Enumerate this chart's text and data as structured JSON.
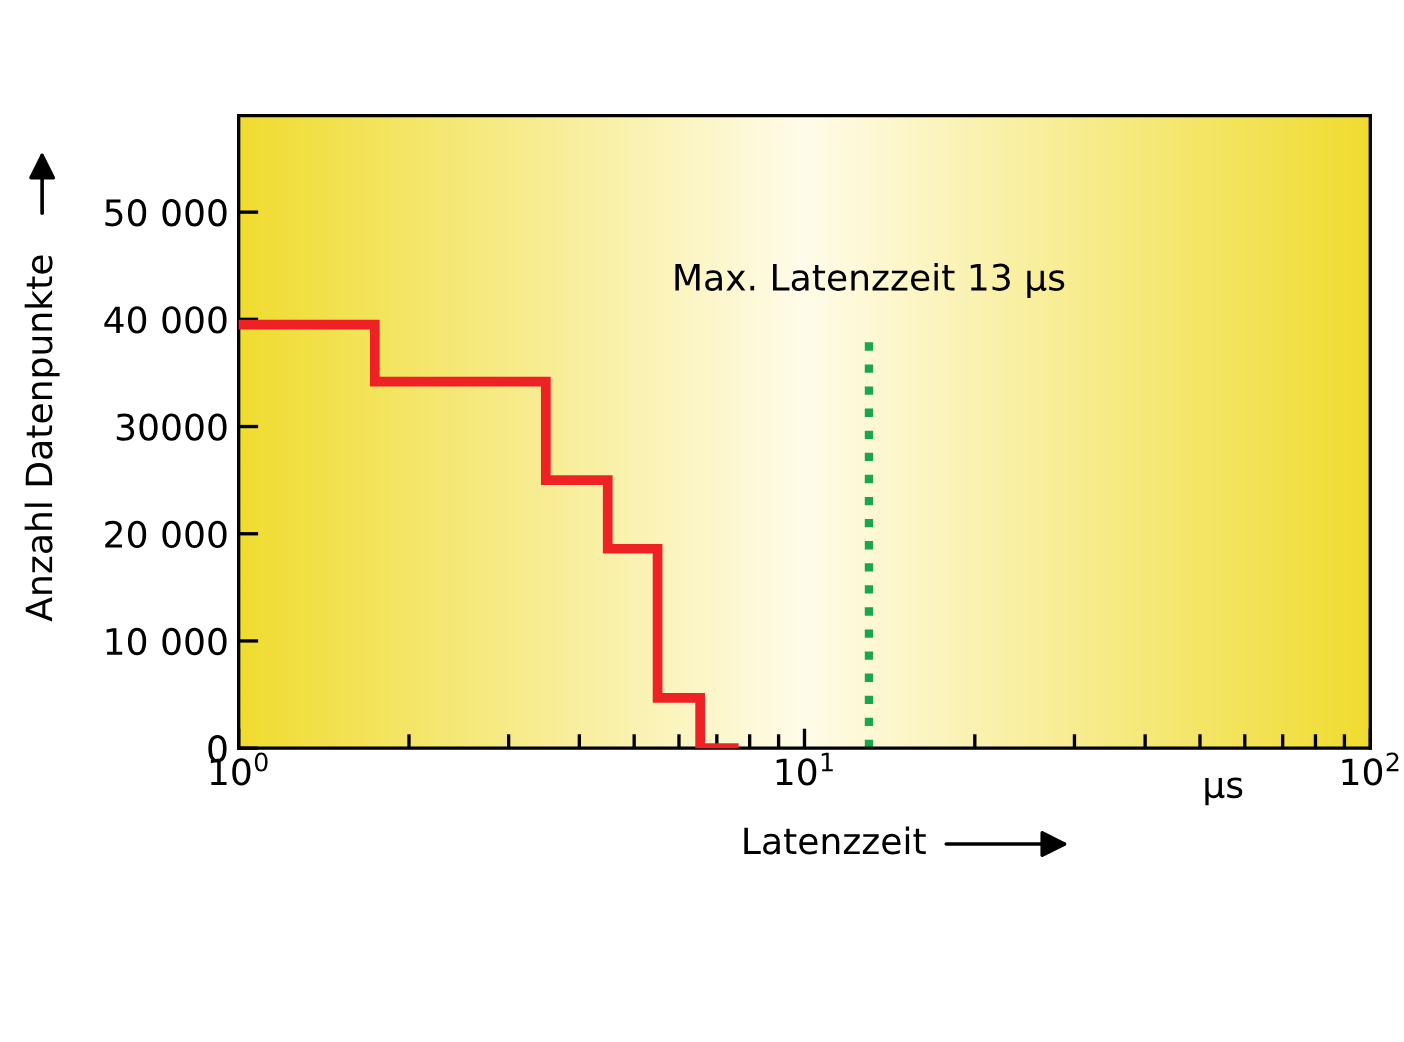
{
  "chart_data": {
    "type": "step",
    "xlabel": "Latenzzeit",
    "ylabel": "Anzahl Datenpunkte",
    "x": [
      1,
      1.74,
      3.49,
      4.49,
      5.5,
      6.54,
      7.5
    ],
    "series": [
      {
        "color": "#ee2224",
        "values": [
          39500,
          34200,
          25000,
          18600,
          4700,
          0,
          0
        ]
      }
    ],
    "log": "x",
    "xlim": [
      1,
      100
    ],
    "xticks": [
      {
        "value": 1,
        "label": "10$^{0}$"
      },
      {
        "value": 10,
        "label": "10$^{1}$"
      },
      {
        "value": 100,
        "label": "10$^{2}$"
      }
    ],
    "ylim": [
      0,
      59000
    ],
    "yticks": [
      {
        "value": 0,
        "label": "0"
      },
      {
        "value": 10000,
        "label": "10 000"
      },
      {
        "value": 20000,
        "label": "20 000"
      },
      {
        "value": 30000,
        "label": "30000"
      },
      {
        "value": 40000,
        "label": "40 000"
      },
      {
        "value": 50000,
        "label": "50 000"
      }
    ],
    "ref_lines": [
      {
        "axis": "x",
        "value": 13,
        "label": "Max. Latenzzeit 13 µs",
        "color": "#1aa64a",
        "line_style": "dotted"
      }
    ],
    "annotations": [
      "µs"
    ],
    "grid": false
  }
}
